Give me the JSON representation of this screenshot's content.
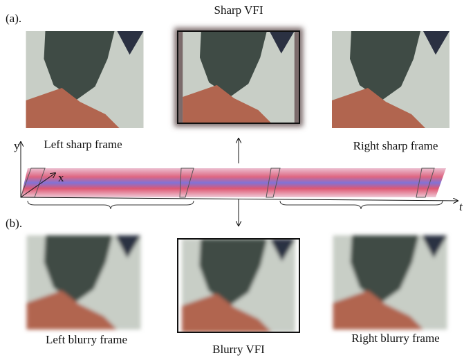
{
  "labels": {
    "panel_a": "(a).",
    "panel_b": "(b).",
    "sharp_vfi": "Sharp VFI",
    "left_sharp": "Left sharp frame",
    "right_sharp": "Right sharp frame",
    "left_blurry": "Left blurry frame",
    "blurry_vfi": "Blurry VFI",
    "right_blurry": "Right blurry frame"
  },
  "axes": {
    "y": "y",
    "x": "x",
    "t": "t"
  }
}
